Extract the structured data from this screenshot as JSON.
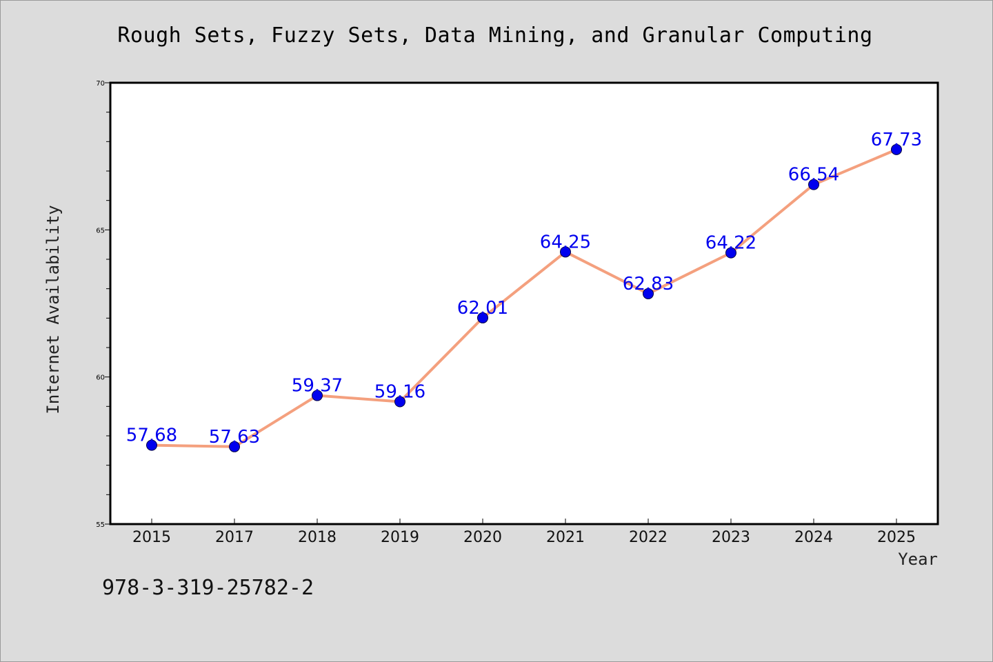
{
  "chart": {
    "title": "Rough Sets, Fuzzy Sets, Data Mining, and Granular Computing",
    "footer": "978-3-319-25782-2"
  },
  "colors": {
    "background": "#dcdcdc",
    "plot_area": "#ffffff",
    "line": "#f4a07e",
    "marker": "#0000ee",
    "data_label": "#0000ee"
  },
  "chart_data": {
    "type": "line",
    "title": "Rough Sets, Fuzzy Sets, Data Mining, and Granular Computing",
    "xlabel": "Year",
    "ylabel": "Internet Availability",
    "categories": [
      "2015",
      "2017",
      "2018",
      "2019",
      "2020",
      "2021",
      "2022",
      "2023",
      "2024",
      "2025"
    ],
    "series": [
      {
        "values": [
          57.68,
          57.63,
          59.37,
          59.16,
          62.01,
          64.25,
          62.83,
          64.22,
          66.54,
          67.73
        ]
      }
    ],
    "data_labels": [
      "57.68",
      "57.63",
      "59.37",
      "59.16",
      "62.01",
      "64.25",
      "62.83",
      "64.22",
      "66.54",
      "67.73"
    ],
    "ylim": [
      55,
      70
    ],
    "yticks": [
      "55",
      "60",
      "65",
      "70"
    ],
    "grid": false,
    "legend": "none"
  }
}
